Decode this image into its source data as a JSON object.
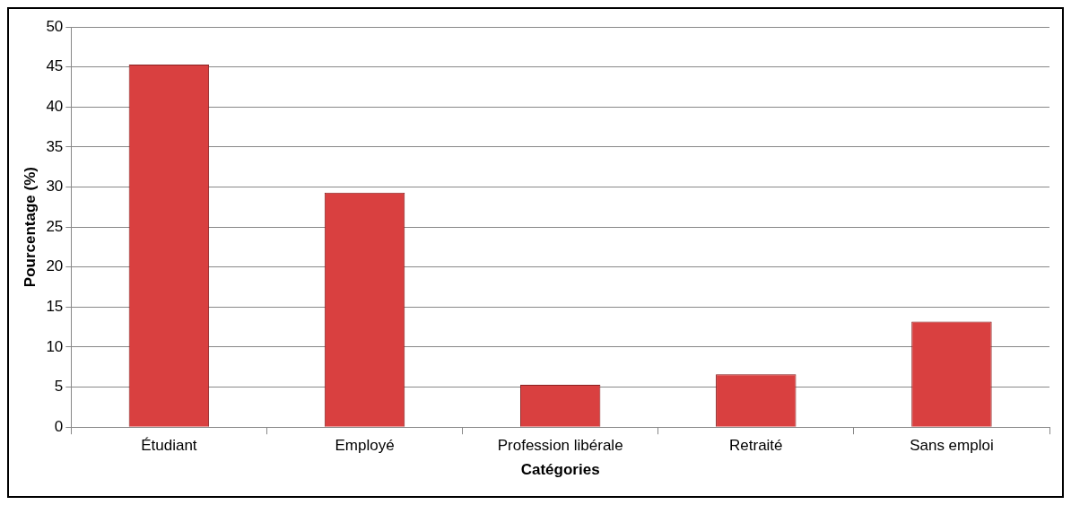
{
  "chart_data": {
    "type": "bar",
    "xlabel": "Catégories",
    "ylabel": "Pourcentage (%)",
    "categories": [
      "Étudiant",
      "Employé",
      "Profession libérale",
      "Retraité",
      "Sans emploi"
    ],
    "values": [
      45.3,
      29.3,
      5.3,
      6.6,
      13.2
    ],
    "color": "#d94040",
    "ylim": [
      0,
      50
    ],
    "yticks": [
      0,
      5,
      10,
      15,
      20,
      25,
      30,
      35,
      40,
      45,
      50
    ],
    "grid": "y"
  }
}
